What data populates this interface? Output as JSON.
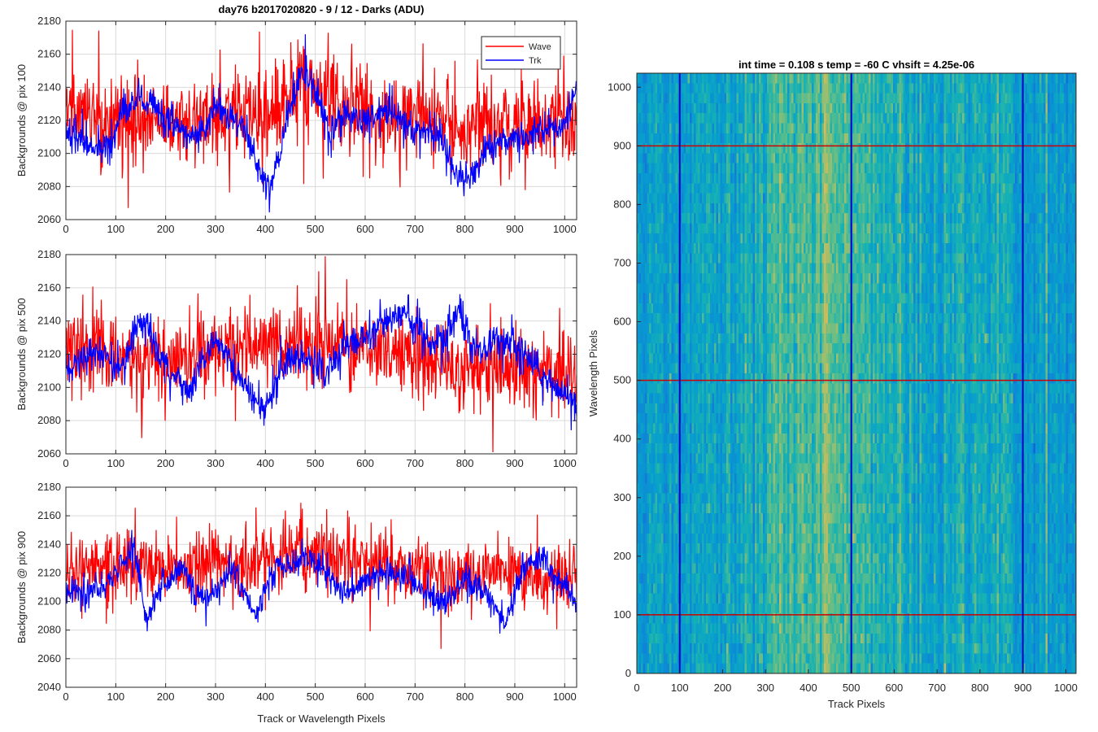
{
  "figure": {
    "title": "day76 b2017020820 - 9 / 12 - Darks (ADU)",
    "image_title": "int time = 0.108 s   temp = -60 C   vhsift = 4.25e-06"
  },
  "chart_data": [
    {
      "type": "line",
      "panel": "top",
      "ylabel": "Backgrounds @ pix 100",
      "xlabel": "",
      "xlim": [
        0,
        1024
      ],
      "ylim": [
        2060,
        2180
      ],
      "xticks": [
        0,
        100,
        200,
        300,
        400,
        500,
        600,
        700,
        800,
        900,
        1000
      ],
      "yticks": [
        2060,
        2080,
        2100,
        2120,
        2140,
        2160,
        2180
      ],
      "grid": true,
      "legend": "top-right",
      "series": [
        {
          "name": "Wave",
          "color": "#ff0000",
          "mean": 2122,
          "noise": 13,
          "trend_x": [
            0,
            200,
            400,
            470,
            600,
            800,
            1024
          ],
          "trend_y": [
            2124,
            2120,
            2124,
            2138,
            2124,
            2118,
            2120
          ]
        },
        {
          "name": "Trk",
          "color": "#0000ff",
          "mean": 2115,
          "noise": 5,
          "trend_x": [
            0,
            30,
            60,
            90,
            120,
            150,
            200,
            260,
            300,
            330,
            360,
            390,
            410,
            440,
            470,
            500,
            530,
            560,
            600,
            650,
            700,
            750,
            780,
            800,
            850,
            900,
            950,
            1000,
            1024
          ],
          "trend_y": [
            2115,
            2108,
            2102,
            2108,
            2128,
            2135,
            2120,
            2110,
            2128,
            2122,
            2115,
            2088,
            2080,
            2115,
            2150,
            2140,
            2110,
            2125,
            2120,
            2125,
            2115,
            2110,
            2090,
            2082,
            2105,
            2110,
            2112,
            2118,
            2138
          ]
        }
      ]
    },
    {
      "type": "line",
      "panel": "middle",
      "ylabel": "Backgrounds @ pix 500",
      "xlabel": "",
      "xlim": [
        0,
        1024
      ],
      "ylim": [
        2060,
        2180
      ],
      "xticks": [
        0,
        100,
        200,
        300,
        400,
        500,
        600,
        700,
        800,
        900,
        1000
      ],
      "yticks": [
        2060,
        2080,
        2100,
        2120,
        2140,
        2160,
        2180
      ],
      "grid": true,
      "series": [
        {
          "name": "Wave",
          "color": "#ff0000",
          "mean": 2120,
          "noise": 12,
          "trend_x": [
            0,
            200,
            450,
            600,
            800,
            1024
          ],
          "trend_y": [
            2122,
            2118,
            2128,
            2125,
            2112,
            2108
          ]
        },
        {
          "name": "Trk",
          "color": "#0000ff",
          "mean": 2115,
          "noise": 5,
          "trend_x": [
            0,
            40,
            80,
            110,
            130,
            150,
            180,
            210,
            250,
            280,
            300,
            330,
            370,
            400,
            430,
            460,
            500,
            520,
            560,
            600,
            640,
            680,
            720,
            760,
            790,
            820,
            860,
            900,
            950,
            1000,
            1024
          ],
          "trend_y": [
            2112,
            2120,
            2118,
            2110,
            2125,
            2142,
            2128,
            2108,
            2098,
            2118,
            2130,
            2115,
            2095,
            2085,
            2110,
            2120,
            2115,
            2105,
            2125,
            2130,
            2140,
            2145,
            2130,
            2128,
            2148,
            2120,
            2128,
            2125,
            2110,
            2095,
            2085
          ]
        }
      ]
    },
    {
      "type": "line",
      "panel": "bottom",
      "ylabel": "Backgrounds @ pix 900",
      "xlabel": "Track or Wavelength Pixels",
      "xlim": [
        0,
        1024
      ],
      "ylim": [
        2040,
        2180
      ],
      "xticks": [
        0,
        100,
        200,
        300,
        400,
        500,
        600,
        700,
        800,
        900,
        1000
      ],
      "yticks": [
        2040,
        2060,
        2080,
        2100,
        2120,
        2140,
        2160,
        2180
      ],
      "grid": true,
      "series": [
        {
          "name": "Wave",
          "color": "#ff0000",
          "mean": 2125,
          "noise": 11,
          "trend_x": [
            0,
            200,
            400,
            470,
            600,
            800,
            1024
          ],
          "trend_y": [
            2122,
            2124,
            2130,
            2138,
            2128,
            2118,
            2118
          ]
        },
        {
          "name": "Trk",
          "color": "#0000ff",
          "mean": 2115,
          "noise": 5,
          "trend_x": [
            0,
            40,
            80,
            110,
            140,
            160,
            190,
            230,
            270,
            300,
            330,
            360,
            380,
            420,
            470,
            520,
            560,
            600,
            640,
            680,
            720,
            760,
            800,
            840,
            880,
            920,
            950,
            1000,
            1024
          ],
          "trend_y": [
            2110,
            2105,
            2112,
            2125,
            2135,
            2085,
            2110,
            2125,
            2100,
            2108,
            2125,
            2105,
            2090,
            2125,
            2130,
            2120,
            2105,
            2115,
            2120,
            2118,
            2108,
            2098,
            2115,
            2108,
            2085,
            2125,
            2132,
            2110,
            2100
          ]
        }
      ]
    },
    {
      "type": "heatmap",
      "panel": "image",
      "title": "int time = 0.108 s   temp = -60 C   vhsift = 4.25e-06",
      "xlabel": "Track Pixels",
      "ylabel": "Wavelength Pixels",
      "xlim": [
        0,
        1024
      ],
      "ylim": [
        0,
        1024
      ],
      "xticks": [
        0,
        100,
        200,
        300,
        400,
        500,
        600,
        700,
        800,
        900,
        1000
      ],
      "yticks": [
        0,
        100,
        200,
        300,
        400,
        500,
        600,
        700,
        800,
        900,
        1000
      ],
      "colormap": "parula",
      "column_profile_x": [
        0,
        120,
        250,
        350,
        430,
        470,
        530,
        620,
        700,
        800,
        900,
        1024
      ],
      "column_profile_level": [
        0.45,
        0.48,
        0.52,
        0.58,
        0.66,
        0.64,
        0.58,
        0.55,
        0.52,
        0.5,
        0.46,
        0.42
      ],
      "markers": {
        "vertical_lines": {
          "x": [
            100,
            500,
            900
          ],
          "color": "#0000cc"
        },
        "horizontal_lines": {
          "y": [
            100,
            500,
            900
          ],
          "color": "#cc0000"
        }
      }
    }
  ]
}
